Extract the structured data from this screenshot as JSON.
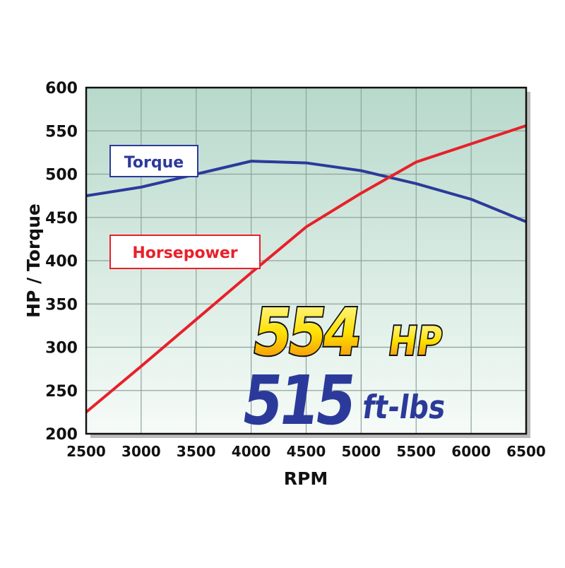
{
  "chart_data": {
    "type": "line",
    "xlabel": "RPM",
    "ylabel": "HP / Torque",
    "xlim": [
      2500,
      6500
    ],
    "ylim": [
      200,
      600
    ],
    "x_ticks": [
      "2500",
      "3000",
      "3500",
      "4000",
      "4500",
      "5000",
      "5500",
      "6000",
      "6500"
    ],
    "y_ticks": [
      "600",
      "550",
      "500",
      "450",
      "400",
      "350",
      "300",
      "250",
      "200"
    ],
    "grid": true,
    "x": [
      2500,
      3000,
      3500,
      4000,
      4500,
      5000,
      5500,
      6000,
      6500
    ],
    "series": [
      {
        "name": "Torque",
        "color": "#2b3a9a",
        "values": [
          475,
          485,
          500,
          515,
          513,
          504,
          489,
          471,
          445
        ]
      },
      {
        "name": "Horsepower",
        "color": "#e8202a",
        "values": [
          225,
          278,
          332,
          386,
          439,
          478,
          514,
          535,
          556
        ]
      }
    ],
    "annotations": {
      "hp_value": "554",
      "hp_unit": "HP",
      "torque_value": "515",
      "torque_unit": "ft-lbs"
    },
    "background_gradient": [
      "#b7d9cb",
      "#f6fbf8"
    ]
  }
}
